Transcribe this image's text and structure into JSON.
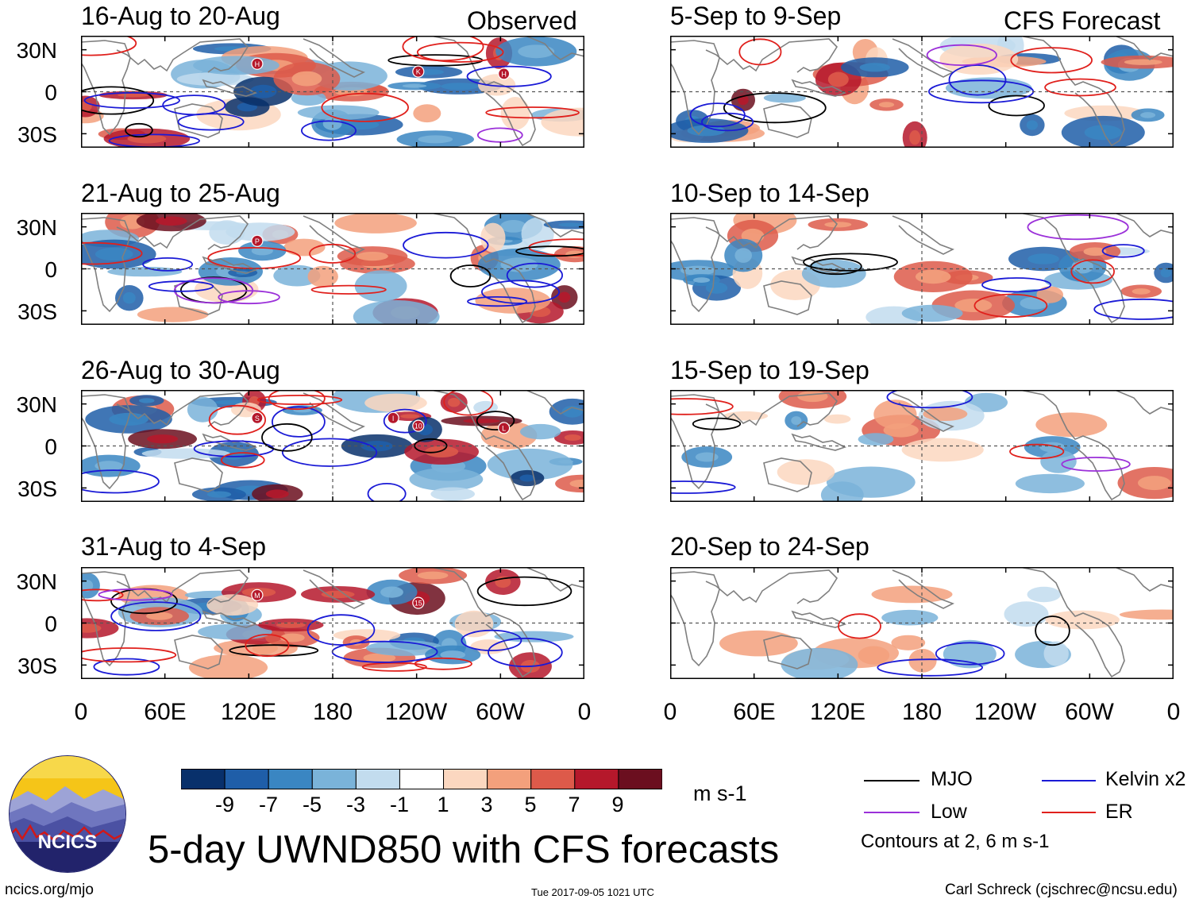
{
  "header": {
    "observed_label": "Observed",
    "forecast_label": "CFS Forecast"
  },
  "chart_data": {
    "type": "heatmap",
    "variable": "5-day UWND850 with CFS forecasts",
    "units": "m s-1",
    "x_axis": {
      "ticks": [
        "0",
        "60E",
        "120E",
        "180",
        "120W",
        "60W",
        "0"
      ]
    },
    "y_axis": {
      "ticks": [
        "30N",
        "0",
        "30S"
      ]
    },
    "observed": [
      {
        "title": "16-Aug to 20-Aug",
        "storms": [
          "H",
          "K",
          "H"
        ]
      },
      {
        "title": "21-Aug to 25-Aug",
        "storms": [
          "P"
        ]
      },
      {
        "title": "26-Aug to 30-Aug",
        "storms": [
          "S",
          "10",
          "L",
          "I"
        ]
      },
      {
        "title": "31-Aug to 4-Sep",
        "storms": [
          "M",
          "15"
        ]
      }
    ],
    "forecast": [
      {
        "title": "5-Sep to 9-Sep",
        "storms": []
      },
      {
        "title": "10-Sep to 14-Sep",
        "storms": []
      },
      {
        "title": "15-Sep to 19-Sep",
        "storms": []
      },
      {
        "title": "20-Sep to 24-Sep",
        "storms": []
      }
    ],
    "colorbar": {
      "ticks": [
        "-9",
        "-7",
        "-5",
        "-3",
        "-1",
        "1",
        "3",
        "5",
        "7",
        "9"
      ],
      "colors": [
        "#08306b",
        "#1f5ea8",
        "#3a86c2",
        "#7ab3d9",
        "#c2dcee",
        "#ffffff",
        "#fbd7c0",
        "#f3a07c",
        "#dd5a4a",
        "#b5182b",
        "#6b0f1f"
      ],
      "units_label": "m s-1"
    },
    "legend": {
      "items": [
        {
          "label": "MJO",
          "color": "#000000"
        },
        {
          "label": "Kelvin x2",
          "color": "#1a1ad6"
        },
        {
          "label": "Low",
          "color": "#9b30d9"
        },
        {
          "label": "ER",
          "color": "#e0201c"
        }
      ],
      "note": "Contours at 2, 6 m s-1"
    }
  },
  "footer": {
    "title": "5-day UWND850 with CFS forecasts",
    "logo_text": "NCICS",
    "url": "ncics.org/mjo",
    "timestamp": "Tue 2017-09-05 1021 UTC",
    "author": "Carl Schreck (cjschrec@ncsu.edu)"
  }
}
